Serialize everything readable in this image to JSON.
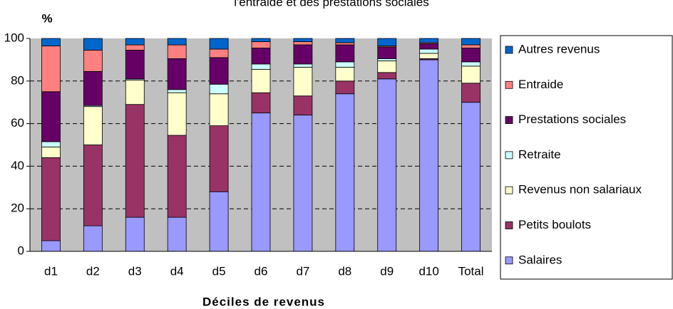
{
  "chart_data": {
    "type": "stacked_bar",
    "title": "l'entraide et des prestations sociales",
    "y_label": "%",
    "x_label": "Déciles de revenus",
    "categories": [
      "d1",
      "d2",
      "d3",
      "d4",
      "d5",
      "d6",
      "d7",
      "d8",
      "d9",
      "d10",
      "Total"
    ],
    "series": [
      {
        "name": "Salaires",
        "color": "#9999ff",
        "values": [
          5,
          12,
          16,
          16,
          28,
          65,
          64,
          74,
          81,
          90,
          70
        ]
      },
      {
        "name": "Petits boulots",
        "color": "#993366",
        "values": [
          39,
          38,
          53,
          38.5,
          31,
          9.5,
          9,
          6,
          3,
          0.5,
          9
        ]
      },
      {
        "name": "Revenus non salariaux",
        "color": "#ffffcc",
        "values": [
          5,
          18,
          11.5,
          20,
          15,
          11,
          13.5,
          6.5,
          5.5,
          2.5,
          8
        ]
      },
      {
        "name": "Retraite",
        "color": "#ccffff",
        "values": [
          2.5,
          0.5,
          0.5,
          1.5,
          4.5,
          2.5,
          1.5,
          2.5,
          1,
          2,
          2
        ]
      },
      {
        "name": "Prestations sociales",
        "color": "#660066",
        "values": [
          23.5,
          16,
          13.5,
          14.5,
          12.5,
          7.5,
          9,
          8,
          5.5,
          2.5,
          6.5
        ]
      },
      {
        "name": "Entraide",
        "color": "#ff8080",
        "values": [
          21.5,
          10,
          2.5,
          6.5,
          4,
          3,
          1.5,
          1,
          0.5,
          0.5,
          1.5
        ]
      },
      {
        "name": "Autres revenus",
        "color": "#0066cc",
        "values": [
          3.5,
          5.5,
          3,
          3,
          5,
          1.5,
          1.5,
          2,
          3.5,
          2,
          3
        ]
      }
    ],
    "ylim": [
      0,
      100
    ],
    "yticks": [
      0,
      20,
      40,
      60,
      80,
      100
    ],
    "grid": true,
    "plot_background": "#c0c0c0",
    "legend": "right"
  }
}
